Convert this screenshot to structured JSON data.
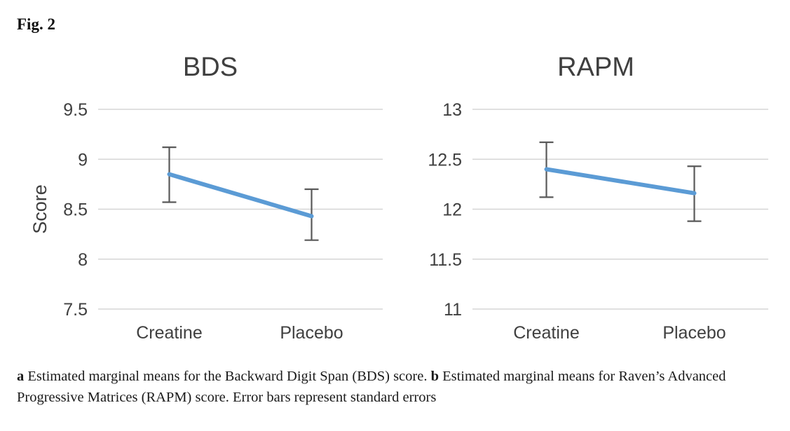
{
  "figure_label": "Fig. 2",
  "caption": {
    "part_a_label": "a",
    "part_a_text": " Estimated marginal means for the Backward Digit Span (BDS) score. ",
    "part_b_label": "b",
    "part_b_text": " Estimated marginal means for Raven’s Advanced Progressive Matrices (RAPM) score. Error bars represent standard errors"
  },
  "colors": {
    "line": "#5B9BD5",
    "error_bar": "#595959",
    "gridline": "#D6D6D6",
    "axis_text": "#404040",
    "title_text": "#3F3F3F"
  },
  "chart_data": [
    {
      "type": "line",
      "title": "BDS",
      "xlabel": "",
      "ylabel": "Score",
      "categories": [
        "Creatine",
        "Placebo"
      ],
      "series": [
        {
          "name": "Estimated marginal mean",
          "values": [
            8.85,
            8.43
          ],
          "error_bars": [
            {
              "lower": 8.57,
              "upper": 9.12
            },
            {
              "lower": 8.19,
              "upper": 8.7
            }
          ]
        }
      ],
      "ylim": [
        7.5,
        9.5
      ],
      "yticks": [
        7.5,
        8,
        8.5,
        9,
        9.5
      ],
      "grid": true,
      "legend": "none"
    },
    {
      "type": "line",
      "title": "RAPM",
      "xlabel": "",
      "ylabel": "",
      "categories": [
        "Creatine",
        "Placebo"
      ],
      "series": [
        {
          "name": "Estimated marginal mean",
          "values": [
            12.4,
            12.16
          ],
          "error_bars": [
            {
              "lower": 12.12,
              "upper": 12.67
            },
            {
              "lower": 11.88,
              "upper": 12.43
            }
          ]
        }
      ],
      "ylim": [
        11,
        13
      ],
      "yticks": [
        11,
        11.5,
        12,
        12.5,
        13
      ],
      "grid": true,
      "legend": "none"
    }
  ]
}
